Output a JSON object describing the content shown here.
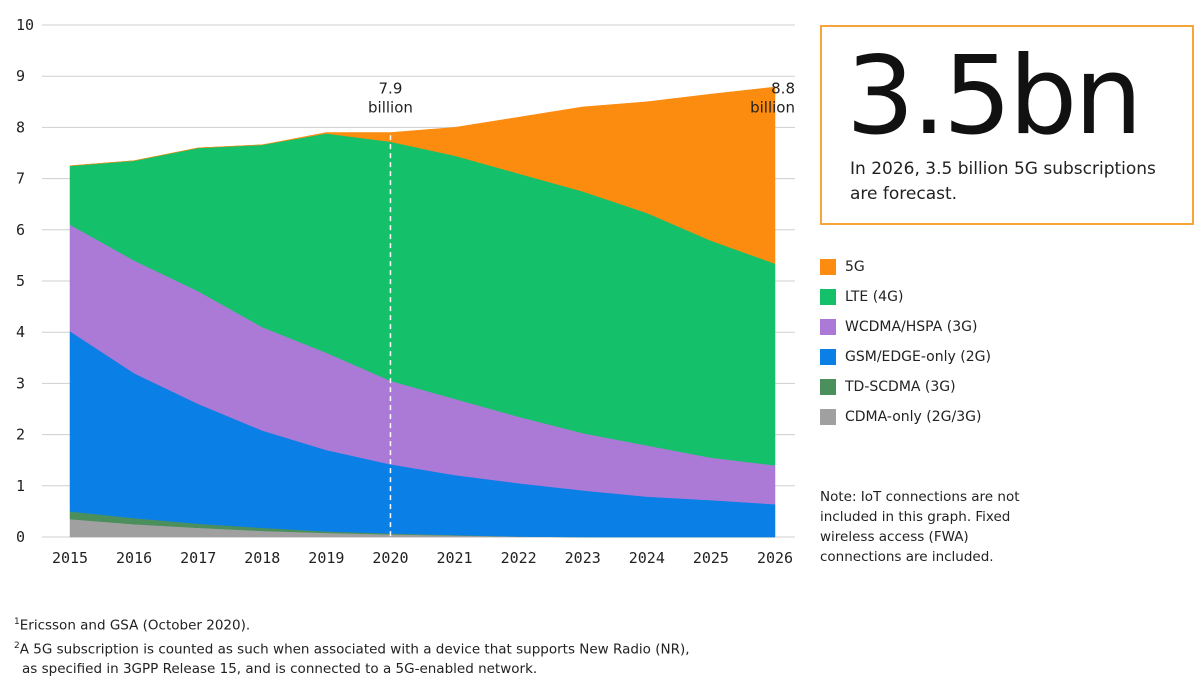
{
  "chart_data": {
    "type": "area",
    "stacked": true,
    "x": [
      2015,
      2016,
      2017,
      2018,
      2019,
      2020,
      2021,
      2022,
      2023,
      2024,
      2025,
      2026
    ],
    "ylim": [
      0,
      10
    ],
    "yticks": [
      0,
      1,
      2,
      3,
      4,
      5,
      6,
      7,
      8,
      9,
      10
    ],
    "grid": true,
    "series": [
      {
        "name": "CDMA-only (2G/3G)",
        "color": "#a0a0a0",
        "values": [
          0.35,
          0.25,
          0.18,
          0.12,
          0.08,
          0.05,
          0.03,
          0.01,
          0.0,
          0.0,
          0.0,
          0.0
        ]
      },
      {
        "name": "TD-SCDMA (3G)",
        "color": "#4a8f5c",
        "values": [
          0.15,
          0.12,
          0.08,
          0.06,
          0.03,
          0.02,
          0.01,
          0.0,
          0.0,
          0.0,
          0.0,
          0.0
        ]
      },
      {
        "name": "GSM/EDGE-only (2G)",
        "color": "#0a7fe6",
        "values": [
          3.52,
          2.83,
          2.34,
          1.9,
          1.59,
          1.35,
          1.17,
          1.04,
          0.91,
          0.79,
          0.72,
          0.64
        ]
      },
      {
        "name": "WCDMA/HSPA (3G)",
        "color": "#ab79d6",
        "values": [
          2.08,
          2.2,
          2.2,
          2.02,
          1.9,
          1.63,
          1.49,
          1.3,
          1.12,
          1.0,
          0.83,
          0.76
        ]
      },
      {
        "name": "LTE (4G)",
        "color": "#14c06a",
        "values": [
          1.15,
          1.95,
          2.8,
          3.56,
          4.28,
          4.67,
          4.75,
          4.75,
          4.72,
          4.54,
          4.24,
          3.94
        ]
      },
      {
        "name": "5G",
        "color": "#fb8c10",
        "values": [
          0.0,
          0.0,
          0.0,
          0.0,
          0.02,
          0.18,
          0.55,
          1.1,
          1.65,
          2.17,
          2.86,
          3.45
        ]
      }
    ],
    "annotations": [
      {
        "x": 2020,
        "line1": "7.9",
        "line2": "billion"
      },
      {
        "x": 2026,
        "line1": "8.8",
        "line2": "billion"
      }
    ],
    "dashed_marker_x": 2020
  },
  "kpi": {
    "value": "3.5bn",
    "text": "In 2026, 3.5 billion 5G subscriptions are forecast.",
    "border_color": "#f7a43b"
  },
  "legend": [
    {
      "label": "5G",
      "color": "#fb8c10"
    },
    {
      "label": "LTE (4G)",
      "color": "#14c06a"
    },
    {
      "label": "WCDMA/HSPA (3G)",
      "color": "#ab79d6"
    },
    {
      "label": "GSM/EDGE-only (2G)",
      "color": "#0a7fe6"
    },
    {
      "label": "TD-SCDMA (3G)",
      "color": "#4a8f5c"
    },
    {
      "label": "CDMA-only (2G/3G)",
      "color": "#a0a0a0"
    }
  ],
  "note": "Note: IoT connections are not included in this graph. Fixed wireless access (FWA) connections are included.",
  "footnotes": {
    "f1_mark": "1",
    "f1_text": "Ericsson and GSA (October 2020).",
    "f2_mark": "2",
    "f2_text": "A 5G subscription is counted as such when associated with a device that supports New Radio (NR),",
    "f2_text_cont": "as specified in 3GPP Release 15, and is connected to a 5G-enabled network."
  }
}
